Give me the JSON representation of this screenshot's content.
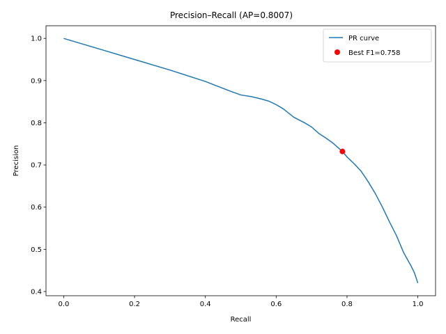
{
  "chart_data": {
    "type": "line",
    "title": "Precision–Recall (AP=0.8007)",
    "xlabel": "Recall",
    "ylabel": "Precision",
    "xlim": [
      -0.05,
      1.05
    ],
    "ylim": [
      0.39,
      1.03
    ],
    "x_ticks": [
      0.0,
      0.2,
      0.4,
      0.6,
      0.8,
      1.0
    ],
    "x_tick_labels": [
      "0.0",
      "0.2",
      "0.4",
      "0.6",
      "0.8",
      "1.0"
    ],
    "y_ticks": [
      0.4,
      0.5,
      0.6,
      0.7,
      0.8,
      0.9,
      1.0
    ],
    "y_tick_labels": [
      "0.4",
      "0.5",
      "0.6",
      "0.7",
      "0.8",
      "0.9",
      "1.0"
    ],
    "grid": false,
    "legend_position": "top-right",
    "series": [
      {
        "name": "PR curve",
        "color": "#1f77b4",
        "x": [
          0.0,
          0.1,
          0.2,
          0.3,
          0.4,
          0.47,
          0.5,
          0.53,
          0.56,
          0.58,
          0.6,
          0.62,
          0.65,
          0.68,
          0.7,
          0.72,
          0.74,
          0.76,
          0.787,
          0.8,
          0.82,
          0.84,
          0.86,
          0.88,
          0.9,
          0.92,
          0.94,
          0.96,
          0.98,
          0.99,
          1.0
        ],
        "y": [
          1.0,
          0.975,
          0.95,
          0.925,
          0.898,
          0.875,
          0.866,
          0.862,
          0.856,
          0.851,
          0.843,
          0.833,
          0.813,
          0.8,
          0.79,
          0.775,
          0.764,
          0.752,
          0.732,
          0.719,
          0.703,
          0.685,
          0.66,
          0.632,
          0.6,
          0.565,
          0.532,
          0.492,
          0.462,
          0.445,
          0.42
        ]
      },
      {
        "name": "Best F1=0.758",
        "type": "scatter",
        "color": "#ff0000",
        "x": [
          0.787
        ],
        "y": [
          0.732
        ]
      }
    ]
  }
}
